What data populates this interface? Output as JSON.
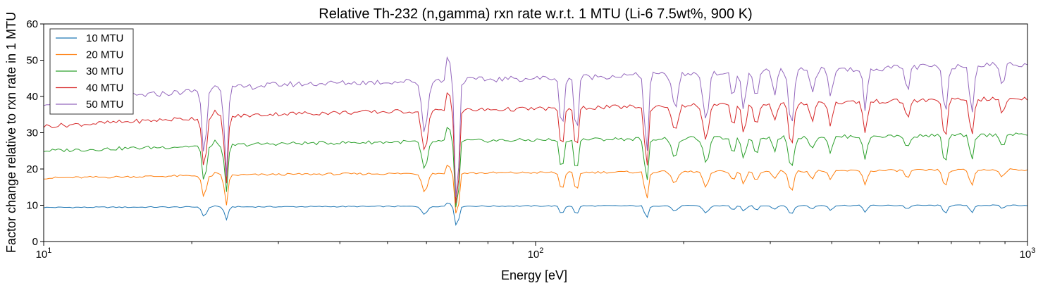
{
  "chart_data": {
    "type": "line",
    "title": "Relative Th-232 (n,gamma) rxn rate w.r.t. 1 MTU (Li-6 7.5wt%, 900 K)",
    "xlabel": "Energy [eV]",
    "ylabel": "Factor change relative to rxn rate in 1 MTU",
    "xscale": "log",
    "xlim": [
      10,
      1000
    ],
    "ylim": [
      0,
      60
    ],
    "yticks": [
      0,
      10,
      20,
      30,
      40,
      50,
      60
    ],
    "xticks": [
      {
        "value": 10,
        "base": "10",
        "exp": "1"
      },
      {
        "value": 100,
        "base": "10",
        "exp": "2"
      },
      {
        "value": 1000,
        "base": "10",
        "exp": "3"
      }
    ],
    "grid": false,
    "legend_position": "top-left",
    "series": [
      {
        "name": "10 MTU",
        "color": "#1f77b4",
        "base": 9.6,
        "dip_scale": 0.25,
        "jitter": 0.15,
        "baseline": [
          [
            10,
            9.4
          ],
          [
            100,
            9.8
          ],
          [
            1000,
            10.0
          ]
        ]
      },
      {
        "name": "20 MTU",
        "color": "#ff7f0e",
        "base": 17.8,
        "dip_scale": 0.55,
        "jitter": 0.3,
        "baseline": [
          [
            10,
            17.5
          ],
          [
            30,
            18.5
          ],
          [
            100,
            19.0
          ],
          [
            1000,
            19.8
          ]
        ]
      },
      {
        "name": "30 MTU",
        "color": "#2ca02c",
        "base": 25.5,
        "dip_scale": 0.9,
        "jitter": 0.5,
        "baseline": [
          [
            10,
            25.0
          ],
          [
            30,
            27.0
          ],
          [
            100,
            28.0
          ],
          [
            1000,
            29.5
          ]
        ]
      },
      {
        "name": "40 MTU",
        "color": "#d62728",
        "base": 32.0,
        "dip_scale": 1.25,
        "jitter": 0.6,
        "baseline": [
          [
            10,
            31.8
          ],
          [
            30,
            35.2
          ],
          [
            100,
            36.6
          ],
          [
            1000,
            39.5
          ]
        ]
      },
      {
        "name": "50 MTU",
        "color": "#9467bd",
        "base": 38.5,
        "dip_scale": 1.6,
        "jitter": 0.8,
        "baseline": [
          [
            10,
            38.2
          ],
          [
            30,
            43.3
          ],
          [
            100,
            45.0
          ],
          [
            1000,
            49.0
          ]
        ]
      }
    ],
    "features": [
      {
        "x": 21.2,
        "depth": 11.5,
        "width": 0.006
      },
      {
        "x": 22.4,
        "depth": -1.5,
        "width": 0.004
      },
      {
        "x": 23.5,
        "depth": 15.0,
        "width": 0.005
      },
      {
        "x": 59.5,
        "depth": 9.0,
        "width": 0.008
      },
      {
        "x": 66.5,
        "depth": -6.0,
        "width": 0.004
      },
      {
        "x": 69.2,
        "depth": 25.0,
        "width": 0.005
      },
      {
        "x": 113,
        "depth": 9.0,
        "width": 0.006
      },
      {
        "x": 121,
        "depth": 11.0,
        "width": 0.005
      },
      {
        "x": 168,
        "depth": 15.0,
        "width": 0.005
      },
      {
        "x": 192,
        "depth": 6.0,
        "width": 0.008
      },
      {
        "x": 222,
        "depth": 8.0,
        "width": 0.008
      },
      {
        "x": 252,
        "depth": 4.5,
        "width": 0.006
      },
      {
        "x": 265,
        "depth": 6.5,
        "width": 0.006
      },
      {
        "x": 281,
        "depth": 5.0,
        "width": 0.006
      },
      {
        "x": 306,
        "depth": 4.0,
        "width": 0.006
      },
      {
        "x": 331,
        "depth": 10.0,
        "width": 0.007
      },
      {
        "x": 365,
        "depth": 4.0,
        "width": 0.006
      },
      {
        "x": 398,
        "depth": 5.0,
        "width": 0.006
      },
      {
        "x": 468,
        "depth": 7.0,
        "width": 0.006
      },
      {
        "x": 570,
        "depth": 4.0,
        "width": 0.006
      },
      {
        "x": 680,
        "depth": 9.0,
        "width": 0.006
      },
      {
        "x": 770,
        "depth": 8.0,
        "width": 0.006
      },
      {
        "x": 890,
        "depth": 3.5,
        "width": 0.006
      }
    ]
  }
}
